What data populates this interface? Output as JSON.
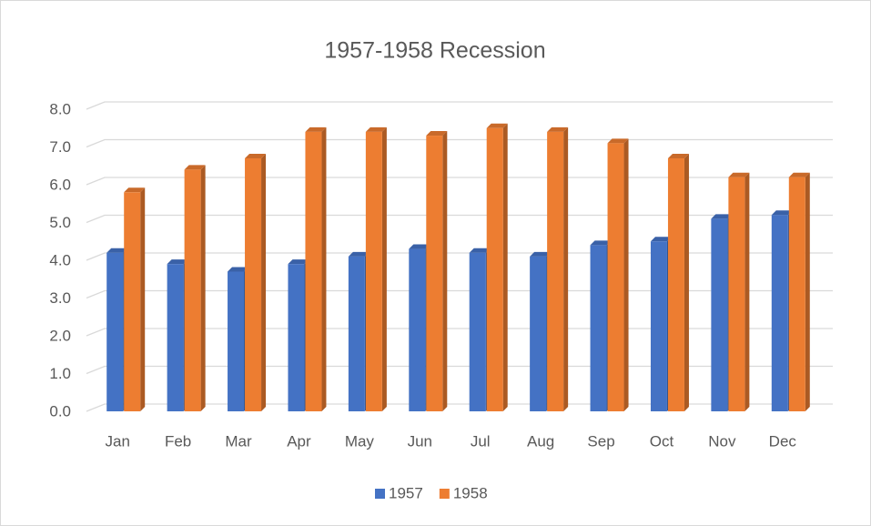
{
  "chart_data": {
    "type": "bar3d",
    "title": "1957-1958 Recession",
    "categories": [
      "Jan",
      "Feb",
      "Mar",
      "Apr",
      "May",
      "Jun",
      "Jul",
      "Aug",
      "Sep",
      "Oct",
      "Nov",
      "Dec"
    ],
    "series": [
      {
        "name": "1957",
        "color": "#4472c4",
        "values": [
          4.2,
          3.9,
          3.7,
          3.9,
          4.1,
          4.3,
          4.2,
          4.1,
          4.4,
          4.5,
          5.1,
          5.2
        ]
      },
      {
        "name": "1958",
        "color": "#ed7d31",
        "values": [
          5.8,
          6.4,
          6.7,
          7.4,
          7.4,
          7.3,
          7.5,
          7.4,
          7.1,
          6.7,
          6.2,
          6.2
        ]
      }
    ],
    "ylim": [
      0,
      8
    ],
    "yticks": [
      {
        "value": 0,
        "label": "0.0"
      },
      {
        "value": 1,
        "label": "1.0"
      },
      {
        "value": 2,
        "label": "2.0"
      },
      {
        "value": 3,
        "label": "3.0"
      },
      {
        "value": 4,
        "label": "4.0"
      },
      {
        "value": 5,
        "label": "5.0"
      },
      {
        "value": 6,
        "label": "6.0"
      },
      {
        "value": 7,
        "label": "7.0"
      },
      {
        "value": 8,
        "label": "8.0"
      }
    ],
    "grid": true,
    "legend": "bottom"
  }
}
